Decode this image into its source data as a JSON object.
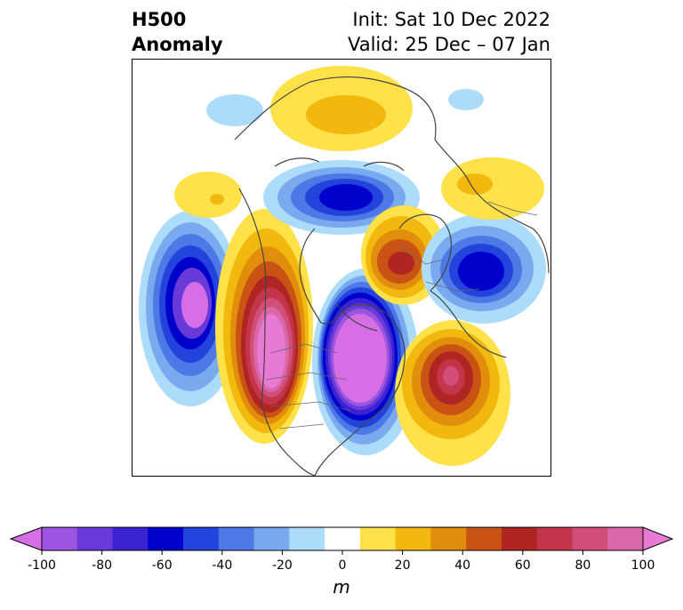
{
  "title": {
    "left_line1": "H500",
    "left_line2": "Anomaly",
    "right_line1": "Init: Sat 10 Dec 2022",
    "right_line2": "Valid: 25 Dec – 07 Jan"
  },
  "colorbar": {
    "unit": "m",
    "tick_labels": [
      "-100",
      "-80",
      "-60",
      "-40",
      "-20",
      "0",
      "20",
      "40",
      "60",
      "80",
      "100"
    ],
    "levels": [
      -100,
      -90,
      -80,
      -70,
      -60,
      -50,
      -40,
      -30,
      -20,
      -10,
      10,
      20,
      30,
      40,
      50,
      60,
      70,
      80,
      90,
      100
    ],
    "colors": [
      "#d66ee6",
      "#9b55e0",
      "#6a3ad9",
      "#3a23d2",
      "#0000cc",
      "#2244dd",
      "#4d79e6",
      "#79aaef",
      "#addcfa",
      "#ffffff",
      "#ffe14a",
      "#f2b80d",
      "#e08e0c",
      "#c95314",
      "#b02524",
      "#c4344a",
      "#d04e77",
      "#da67a8",
      "#e87ad6"
    ]
  },
  "map": {
    "anomaly_centers": [
      {
        "name": "aleutian-low",
        "sign": "negative",
        "peak": -90
      },
      {
        "name": "western-north-america-ridge",
        "sign": "positive",
        "peak": 90
      },
      {
        "name": "eastern-north-america-trough",
        "sign": "negative",
        "peak": -100
      },
      {
        "name": "north-atlantic-ridge",
        "sign": "positive",
        "peak": 80
      },
      {
        "name": "polar-trough",
        "sign": "negative",
        "peak": -60
      },
      {
        "name": "scandinavian-ridge",
        "sign": "positive",
        "peak": 60
      },
      {
        "name": "siberian-trough",
        "sign": "negative",
        "peak": -60
      }
    ]
  }
}
